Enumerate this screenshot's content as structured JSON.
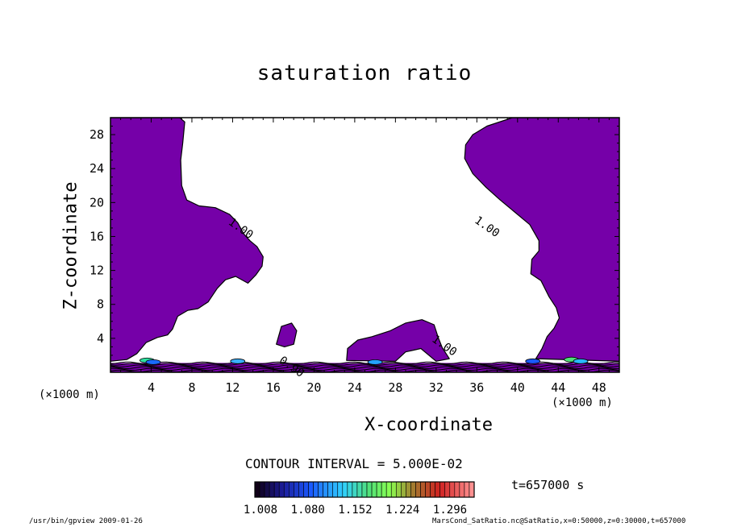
{
  "chart_data": {
    "type": "contour",
    "title": "saturation ratio",
    "xlabel": "X-coordinate",
    "ylabel": "Z-coordinate",
    "x_unit": "(×1000 m)",
    "xlim": [
      0,
      50
    ],
    "ylim": [
      0,
      30
    ],
    "x_ticks": [
      4,
      8,
      12,
      16,
      20,
      24,
      28,
      32,
      36,
      40,
      44,
      48
    ],
    "y_ticks": [
      4,
      8,
      12,
      16,
      20,
      24,
      28
    ],
    "contour_interval_text": "CONTOUR INTERVAL = 5.000E-02",
    "contour_labels": [
      {
        "text": "1.00",
        "x": 12.6,
        "y": 16.6
      },
      {
        "text": "1.00",
        "x": 36.8,
        "y": 16.8
      },
      {
        "text": "1.00",
        "x": 32.6,
        "y": 2.8
      },
      {
        "text": "0.90",
        "x": 17.6,
        "y": 0.3
      }
    ],
    "colorbar_ticks": [
      "1.008",
      "1.080",
      "1.152",
      "1.224",
      "1.296"
    ],
    "time_text": "t=657000  s",
    "fill_color": "#7500a8",
    "supersaturated_regions": [
      {
        "name": "upper-left",
        "outline": [
          [
            0,
            30
          ],
          [
            6.8,
            30
          ],
          [
            7.3,
            29.5
          ],
          [
            7.1,
            27
          ],
          [
            6.9,
            25
          ],
          [
            7,
            22
          ],
          [
            7.5,
            20.3
          ],
          [
            8.7,
            19.6
          ],
          [
            10.3,
            19.4
          ],
          [
            11.7,
            18.6
          ],
          [
            12.5,
            17.6
          ],
          [
            13.1,
            16.3
          ],
          [
            13.7,
            15.5
          ],
          [
            14.4,
            14.8
          ],
          [
            15,
            13.6
          ],
          [
            14.9,
            12.5
          ],
          [
            14.3,
            11.5
          ],
          [
            13.5,
            10.5
          ],
          [
            12.3,
            11.3
          ],
          [
            11.3,
            10.9
          ],
          [
            10.5,
            9.9
          ],
          [
            9.6,
            8.3
          ],
          [
            8.6,
            7.5
          ],
          [
            7.6,
            7.3
          ],
          [
            6.6,
            6.6
          ],
          [
            6.1,
            5.1
          ],
          [
            5.6,
            4.4
          ],
          [
            4.6,
            4.1
          ],
          [
            3.5,
            3.5
          ],
          [
            2.6,
            2.2
          ],
          [
            1.6,
            1.5
          ],
          [
            0,
            1.3
          ]
        ]
      },
      {
        "name": "upper-right",
        "outline": [
          [
            50,
            30
          ],
          [
            39.5,
            30
          ],
          [
            37,
            29
          ],
          [
            35.6,
            28
          ],
          [
            34.9,
            26.8
          ],
          [
            34.8,
            25.2
          ],
          [
            35.6,
            23.4
          ],
          [
            36.9,
            21.8
          ],
          [
            38.3,
            20.3
          ],
          [
            39.8,
            18.8
          ],
          [
            41.2,
            17.4
          ],
          [
            42.1,
            15.5
          ],
          [
            42.1,
            14.3
          ],
          [
            41.4,
            13.3
          ],
          [
            41.3,
            11.6
          ],
          [
            42.3,
            10.8
          ],
          [
            43.1,
            8.9
          ],
          [
            43.8,
            7.6
          ],
          [
            44.1,
            6.4
          ],
          [
            43.6,
            5.2
          ],
          [
            42.9,
            4.2
          ],
          [
            42.4,
            2.8
          ],
          [
            41.8,
            1.6
          ],
          [
            50,
            1.3
          ]
        ]
      },
      {
        "name": "middle-blob",
        "outline": [
          [
            23.2,
            1.4
          ],
          [
            23.3,
            2.8
          ],
          [
            24.3,
            3.8
          ],
          [
            25.7,
            4.2
          ],
          [
            27.5,
            4.9
          ],
          [
            29,
            5.8
          ],
          [
            30.6,
            6.2
          ],
          [
            31.8,
            5.6
          ],
          [
            32.2,
            4.1
          ],
          [
            32.6,
            2.9
          ],
          [
            33.3,
            1.6
          ],
          [
            32,
            1.3
          ],
          [
            30.5,
            2.8
          ],
          [
            29,
            2.4
          ],
          [
            28,
            1.3
          ]
        ]
      },
      {
        "name": "small-blob",
        "outline": [
          [
            16.3,
            3.3
          ],
          [
            16.8,
            5.4
          ],
          [
            17.8,
            5.8
          ],
          [
            18.3,
            4.9
          ],
          [
            18,
            3.3
          ],
          [
            17.1,
            3
          ]
        ]
      }
    ]
  }
}
